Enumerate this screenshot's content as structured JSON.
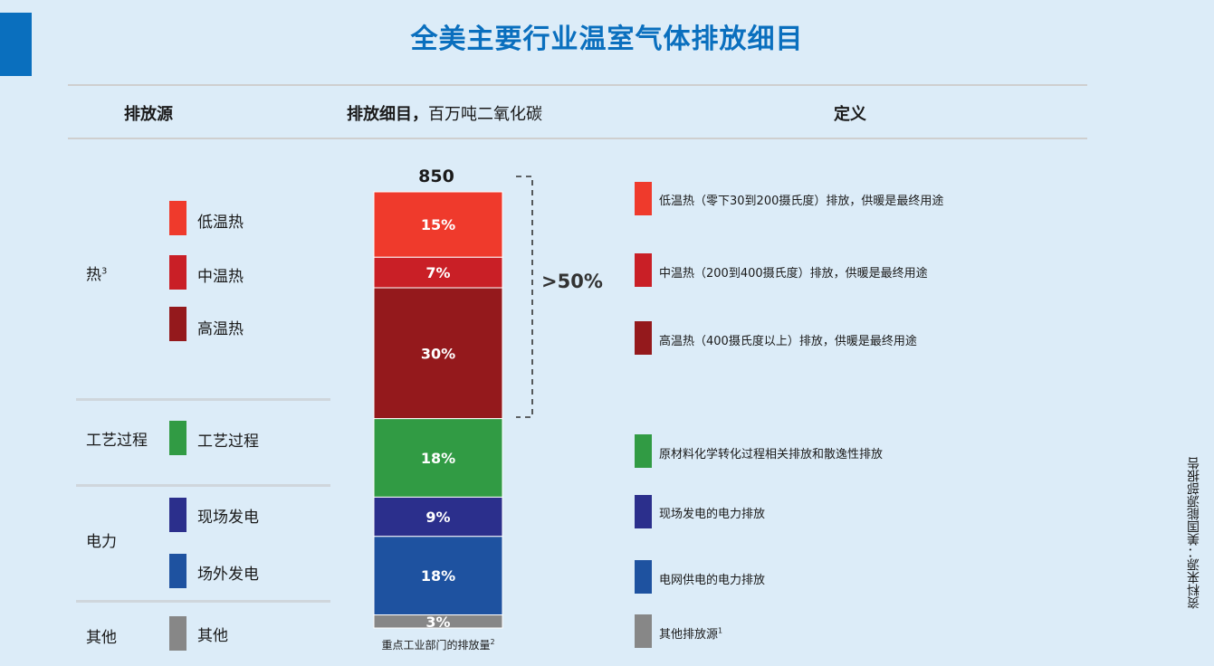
{
  "title": "全美主要行业温室气体排放细目",
  "headers": {
    "source": "排放源",
    "breakdown_bold": "排放细目，",
    "breakdown_unit": "百万吨二氧化碳",
    "definition": "定义"
  },
  "categories": {
    "heat": "热",
    "heat_note": "3",
    "process": "工艺过程",
    "power": "电力",
    "other": "其他"
  },
  "subcategories": {
    "low_heat": "低温热",
    "mid_heat": "中温热",
    "high_heat": "高温热",
    "process": "工艺过程",
    "onsite": "现场发电",
    "offsite": "场外发电",
    "other": "其他"
  },
  "definitions": {
    "low_heat": "低温热（零下30到200摄氏度）排放，供暖是最终用途",
    "mid_heat": "中温热（200到400摄氏度）排放，供暖是最终用途",
    "high_heat": "高温热（400摄氏度以上）排放，供暖是最终用途",
    "process": "原材料化学转化过程相关排放和散逸性排放",
    "onsite": "现场发电的电力排放",
    "offsite": "电网供电的电力排放",
    "other": "其他排放源",
    "other_note": "1"
  },
  "source_note": "资料来源：美国能源部报告",
  "chart_data": {
    "type": "bar",
    "stacked": true,
    "total": 850,
    "total_label": "850",
    "xlabel": "重点工业部门的排放量",
    "xlabel_note": "2",
    "bracket_label": ">50%",
    "series": [
      {
        "name": "低温热",
        "value": 15,
        "label": "15%",
        "color": "#ef3a2c"
      },
      {
        "name": "中温热",
        "value": 7,
        "label": "7%",
        "color": "#c91f26"
      },
      {
        "name": "高温热",
        "value": 30,
        "label": "30%",
        "color": "#94191c"
      },
      {
        "name": "工艺过程",
        "value": 18,
        "label": "18%",
        "color": "#319b44"
      },
      {
        "name": "现场发电",
        "value": 9,
        "label": "9%",
        "color": "#2b2f8c"
      },
      {
        "name": "场外发电",
        "value": 18,
        "label": "18%",
        "color": "#1e52a0"
      },
      {
        "name": "其他",
        "value": 3,
        "label": "3%",
        "color": "#878787"
      }
    ]
  }
}
